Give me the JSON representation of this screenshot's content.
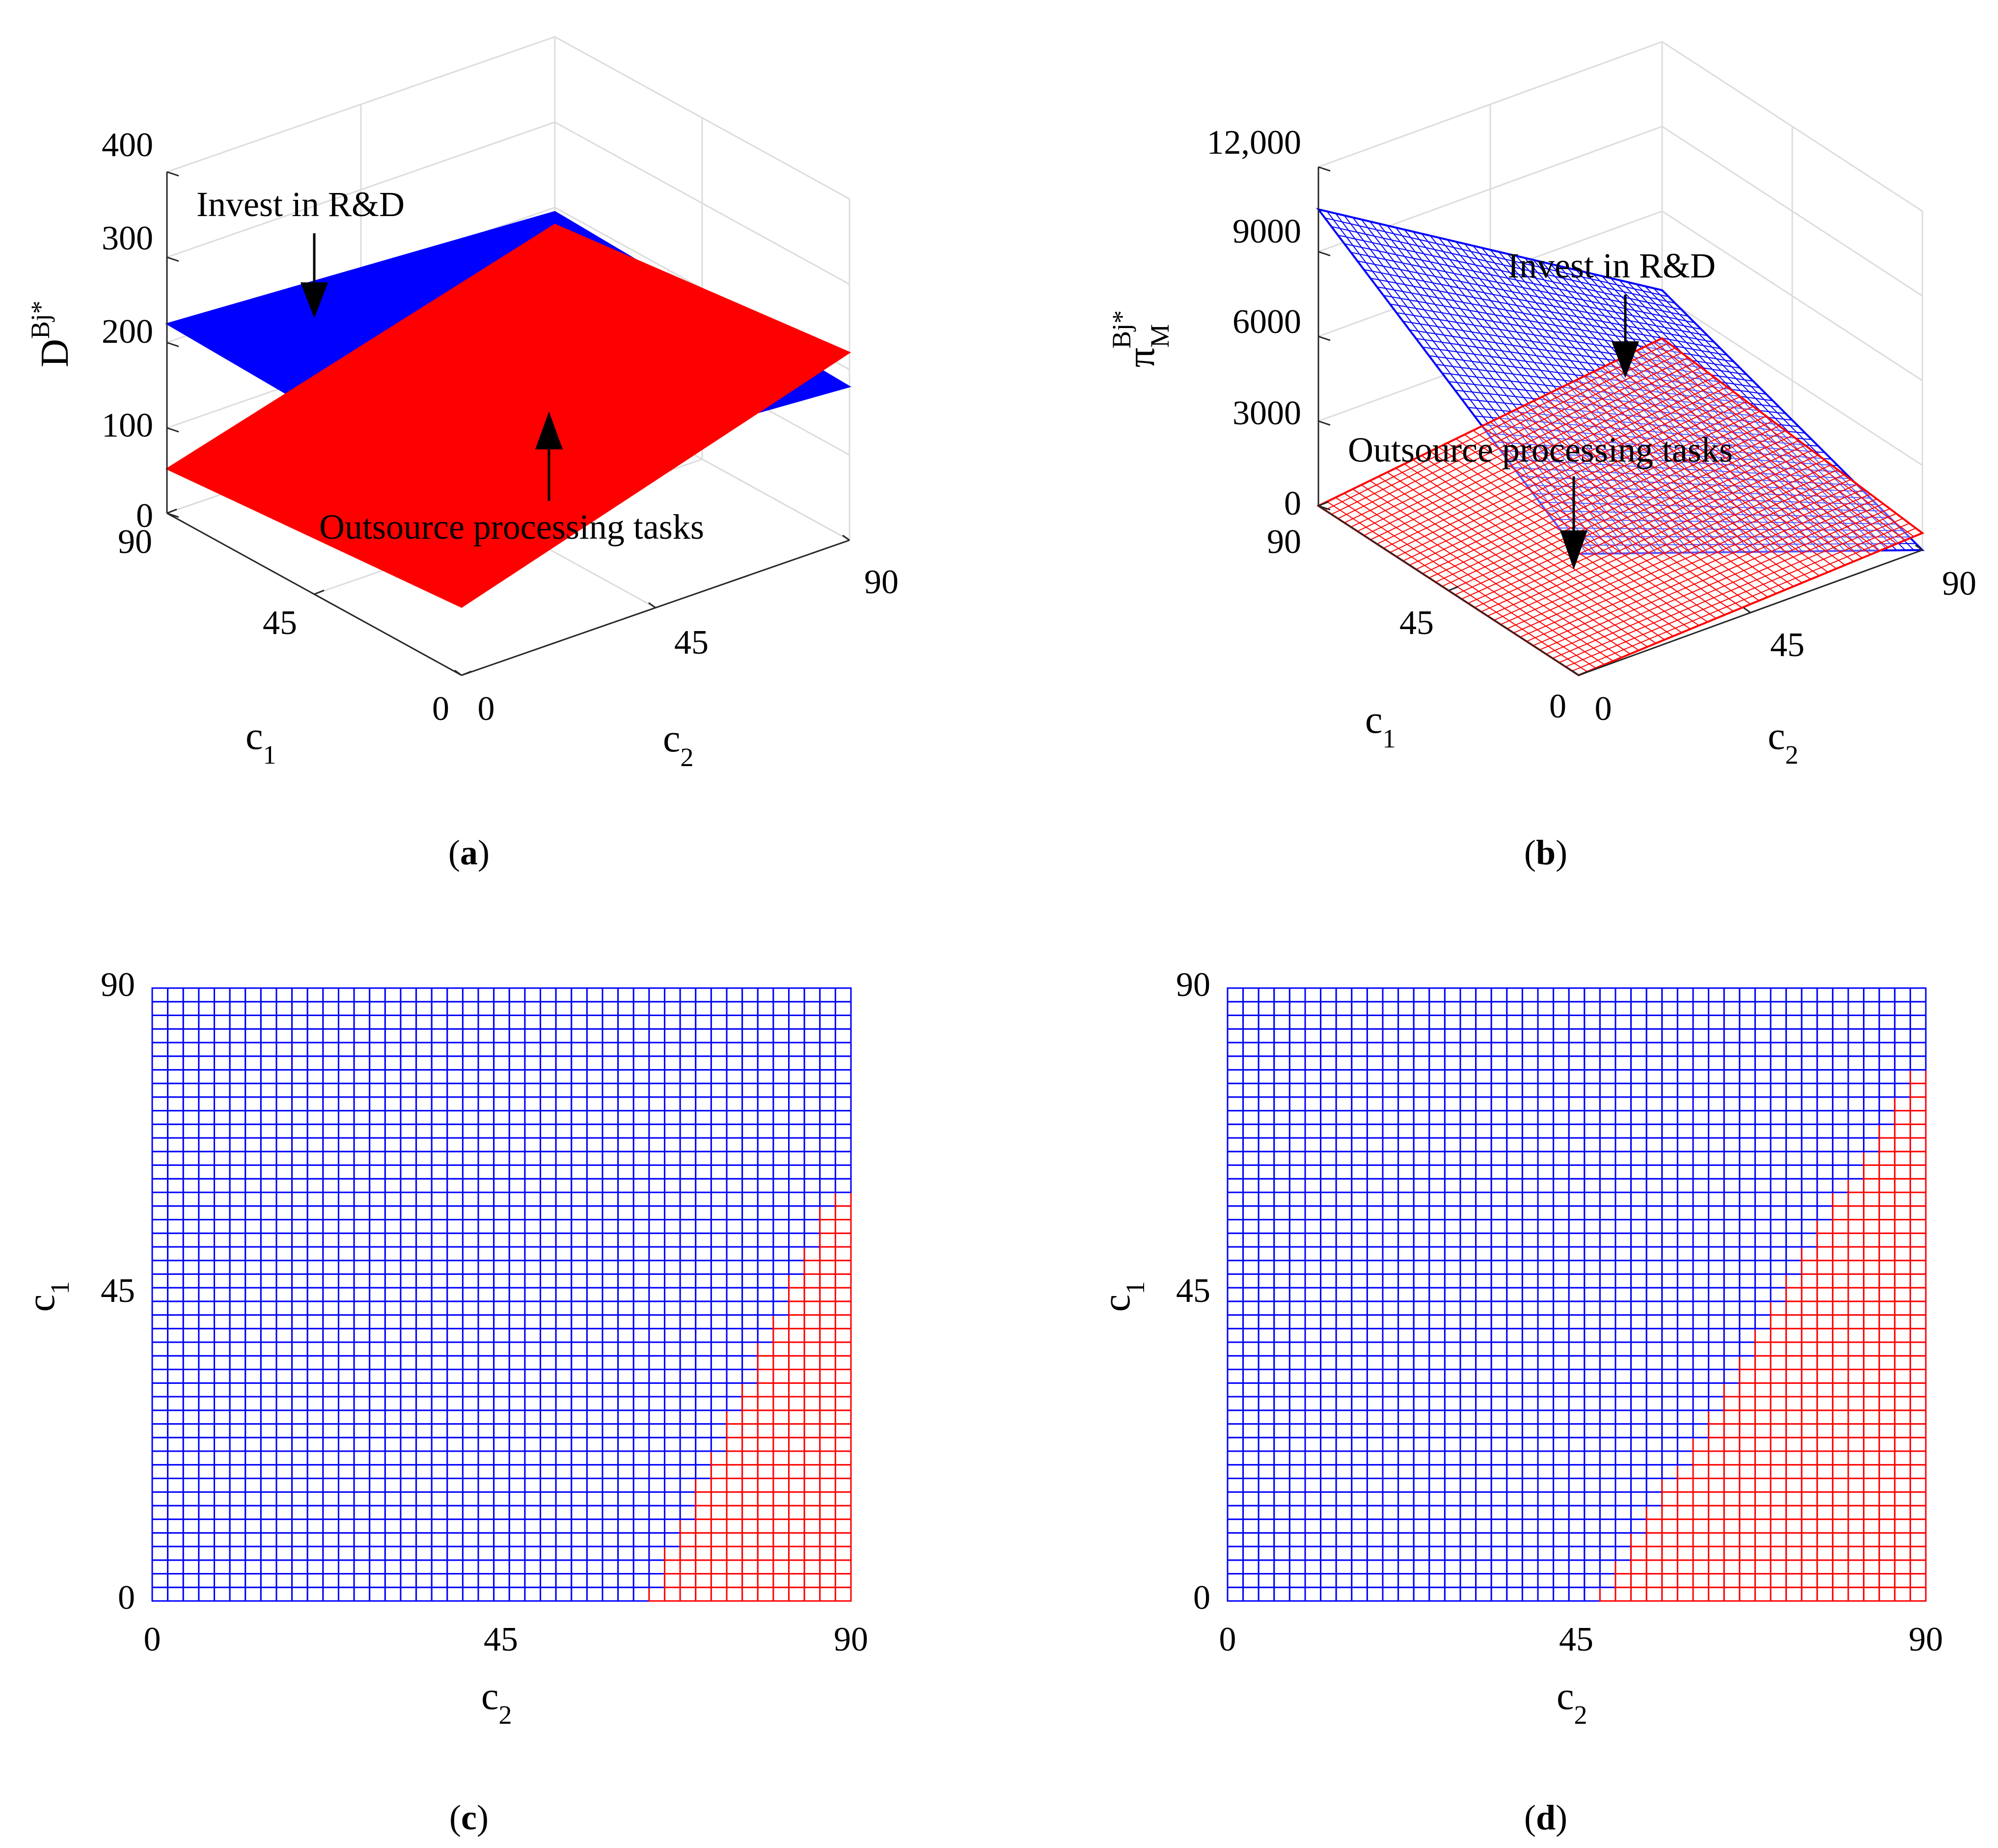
{
  "colors": {
    "blue": "#0000ff",
    "red": "#ff0000",
    "axis": "#262626",
    "grid": "#dcdcdc"
  },
  "chart_data": [
    {
      "panel": "a",
      "type": "surface3d",
      "caption": {
        "open": "(",
        "letter": "a",
        "close": ")"
      },
      "zlabel": {
        "base": "D",
        "sup": "Bj*"
      },
      "xlabel": {
        "base": "c",
        "sub": "1"
      },
      "ylabel": {
        "base": "c",
        "sub": "2"
      },
      "zticks": [
        "0",
        "100",
        "200",
        "300",
        "400"
      ],
      "zlim": [
        0,
        400
      ],
      "c1ticks": [
        "0",
        "45",
        "90"
      ],
      "c2ticks": [
        "0",
        "45",
        "90"
      ],
      "c1lim": [
        0,
        90
      ],
      "c2lim": [
        0,
        90
      ],
      "series": [
        {
          "name": "Invest in R&D",
          "color": "blue",
          "corners": {
            "c1=90,c2=0": 222,
            "c1=0,c2=0": 210,
            "c1=0,c2=90": 180,
            "c1=90,c2=90": 195
          }
        },
        {
          "name": "Outsource processing tasks",
          "color": "red",
          "corners": {
            "c1=90,c2=0": 52,
            "c1=0,c2=0": 80,
            "c1=0,c2=90": 220,
            "c1=90,c2=90": 180
          }
        }
      ],
      "annotations": [
        {
          "text": "Invest in R&D",
          "target": "blue surface"
        },
        {
          "text": "Outsource processing tasks",
          "target": "red surface"
        }
      ]
    },
    {
      "panel": "b",
      "type": "surface3d",
      "caption": {
        "open": "(",
        "letter": "b",
        "close": ")"
      },
      "zlabel": {
        "base": "π",
        "sub": "M",
        "sup": "Bj*"
      },
      "xlabel": {
        "base": "c",
        "sub": "1"
      },
      "ylabel": {
        "base": "c",
        "sub": "2"
      },
      "zticks": [
        "0",
        "3000",
        "6000",
        "9000",
        "12,000"
      ],
      "zlim": [
        0,
        12000
      ],
      "c1ticks": [
        "0",
        "45",
        "90"
      ],
      "c2ticks": [
        "0",
        "45",
        "90"
      ],
      "c1lim": [
        0,
        90
      ],
      "c2lim": [
        0,
        90
      ],
      "series": [
        {
          "name": "Invest in R&D",
          "color": "blue",
          "corners": {
            "c1=90,c2=0": 10500,
            "c1=0,c2=0": 4300,
            "c1=0,c2=90": 0,
            "c1=90,c2=90": 3200
          }
        },
        {
          "name": "Outsource processing tasks",
          "color": "red",
          "corners": {
            "c1=90,c2=0": 0,
            "c1=0,c2=0": 0,
            "c1=0,c2=90": 600,
            "c1=90,c2=90": 1500
          }
        }
      ],
      "annotations": [
        {
          "text": "Invest in R&D",
          "target": "blue surface"
        },
        {
          "text": "Outsource processing tasks",
          "target": "red surface"
        }
      ]
    },
    {
      "panel": "c",
      "type": "heatmap",
      "caption": {
        "open": "(",
        "letter": "c",
        "close": ")"
      },
      "xlabel": {
        "base": "c",
        "sub": "2"
      },
      "ylabel": {
        "base": "c",
        "sub": "1"
      },
      "xticks": [
        "0",
        "45",
        "90"
      ],
      "yticks": [
        "0",
        "45",
        "90"
      ],
      "xlim": [
        0,
        90
      ],
      "ylim": [
        0,
        90
      ],
      "grid_cells": 45,
      "regions": [
        {
          "name": "Invest in R&D",
          "color": "blue"
        },
        {
          "name": "Outsource processing tasks",
          "color": "red"
        }
      ],
      "boundary": {
        "c2_at_c1_0": 64,
        "c2_at_c1_max": 88,
        "c1_max": 60
      }
    },
    {
      "panel": "d",
      "type": "heatmap",
      "caption": {
        "open": "(",
        "letter": "d",
        "close": ")"
      },
      "xlabel": {
        "base": "c",
        "sub": "2"
      },
      "ylabel": {
        "base": "c",
        "sub": "1"
      },
      "xticks": [
        "0",
        "45",
        "90"
      ],
      "yticks": [
        "0",
        "45",
        "90"
      ],
      "xlim": [
        0,
        90
      ],
      "ylim": [
        0,
        90
      ],
      "grid_cells": 45,
      "regions": [
        {
          "name": "Invest in R&D",
          "color": "blue"
        },
        {
          "name": "Outsource processing tasks",
          "color": "red"
        }
      ],
      "boundary": {
        "c2_at_c1_0": 48,
        "c2_at_c1_max": 90,
        "c1_max": 80
      }
    }
  ]
}
